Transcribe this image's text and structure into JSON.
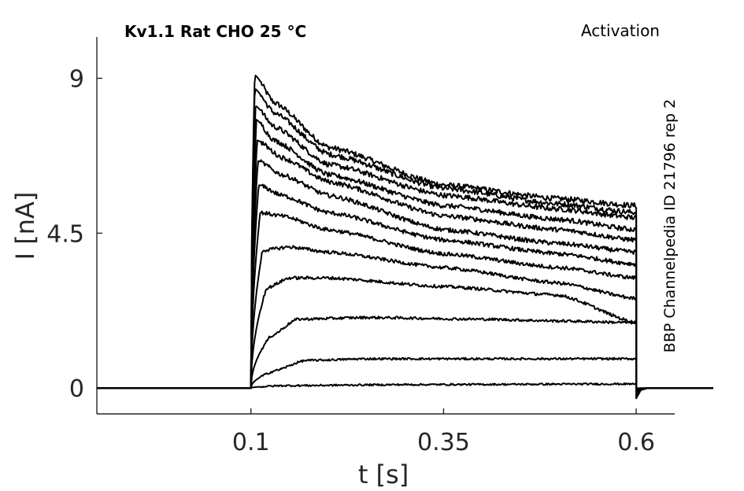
{
  "chart_data": {
    "type": "line",
    "title": "Kv1.1  Rat  CHO  25 °C",
    "protocol": "Activation",
    "source": "BBP Channelpedia ID 21796 rep 2",
    "xlabel": "t [s]",
    "ylabel": "I [nA]",
    "xlim": [
      -0.1,
      0.65
    ],
    "ylim": [
      -0.75,
      10.2
    ],
    "xticks": [
      0.1,
      0.35,
      0.6
    ],
    "xtick_labels": [
      "0.1",
      "0.35",
      "0.6"
    ],
    "yticks": [
      0,
      4.5,
      9
    ],
    "ytick_labels": [
      "0",
      "4.5",
      "9"
    ],
    "grid": false,
    "x_range_of_traces": [
      -0.1,
      0.7
    ],
    "step_on": 0.1,
    "step_off": 0.6,
    "series_end_values": [
      5.3,
      5.1,
      4.95,
      4.6,
      4.3,
      3.95,
      3.6,
      3.2,
      2.6,
      1.9,
      0.85,
      0.12,
      0.0
    ],
    "series": [
      {
        "values": [
          [
            0.1,
            0
          ],
          [
            0.105,
            9.1
          ],
          [
            0.13,
            8.3
          ],
          [
            0.2,
            7.0
          ],
          [
            0.35,
            5.9
          ],
          [
            0.5,
            5.5
          ],
          [
            0.6,
            5.3
          ]
        ]
      },
      {
        "values": [
          [
            0.1,
            0
          ],
          [
            0.105,
            8.7
          ],
          [
            0.13,
            8.0
          ],
          [
            0.2,
            6.8
          ],
          [
            0.35,
            5.8
          ],
          [
            0.5,
            5.35
          ],
          [
            0.6,
            5.1
          ]
        ]
      },
      {
        "values": [
          [
            0.1,
            0
          ],
          [
            0.106,
            8.2
          ],
          [
            0.13,
            7.6
          ],
          [
            0.2,
            6.5
          ],
          [
            0.35,
            5.6
          ],
          [
            0.5,
            5.2
          ],
          [
            0.6,
            4.95
          ]
        ]
      },
      {
        "values": [
          [
            0.1,
            0
          ],
          [
            0.107,
            7.8
          ],
          [
            0.13,
            7.2
          ],
          [
            0.2,
            6.2
          ],
          [
            0.35,
            5.3
          ],
          [
            0.5,
            4.9
          ],
          [
            0.6,
            4.6
          ]
        ]
      },
      {
        "values": [
          [
            0.1,
            0
          ],
          [
            0.108,
            7.2
          ],
          [
            0.14,
            6.7
          ],
          [
            0.2,
            6.0
          ],
          [
            0.35,
            5.0
          ],
          [
            0.5,
            4.6
          ],
          [
            0.6,
            4.3
          ]
        ]
      },
      {
        "values": [
          [
            0.1,
            0
          ],
          [
            0.109,
            6.6
          ],
          [
            0.14,
            6.2
          ],
          [
            0.2,
            5.6
          ],
          [
            0.35,
            4.6
          ],
          [
            0.5,
            4.2
          ],
          [
            0.6,
            3.95
          ]
        ]
      },
      {
        "values": [
          [
            0.1,
            0
          ],
          [
            0.11,
            5.9
          ],
          [
            0.14,
            5.6
          ],
          [
            0.2,
            5.1
          ],
          [
            0.35,
            4.3
          ],
          [
            0.5,
            3.9
          ],
          [
            0.6,
            3.6
          ]
        ]
      },
      {
        "values": [
          [
            0.1,
            0
          ],
          [
            0.112,
            5.1
          ],
          [
            0.14,
            5.0
          ],
          [
            0.2,
            4.6
          ],
          [
            0.35,
            3.9
          ],
          [
            0.5,
            3.5
          ],
          [
            0.6,
            3.2
          ]
        ]
      },
      {
        "values": [
          [
            0.1,
            0
          ],
          [
            0.115,
            4.0
          ],
          [
            0.15,
            4.1
          ],
          [
            0.2,
            3.95
          ],
          [
            0.35,
            3.5
          ],
          [
            0.5,
            3.05
          ],
          [
            0.6,
            2.6
          ]
        ]
      },
      {
        "values": [
          [
            0.1,
            0
          ],
          [
            0.12,
            2.9
          ],
          [
            0.15,
            3.2
          ],
          [
            0.2,
            3.2
          ],
          [
            0.35,
            2.95
          ],
          [
            0.5,
            2.7
          ],
          [
            0.6,
            1.9
          ]
        ]
      },
      {
        "values": [
          [
            0.1,
            0
          ],
          [
            0.125,
            1.5
          ],
          [
            0.16,
            2.0
          ],
          [
            0.25,
            2.05
          ],
          [
            0.4,
            2.0
          ],
          [
            0.5,
            1.95
          ],
          [
            0.6,
            1.9
          ]
        ]
      },
      {
        "values": [
          [
            0.1,
            0
          ],
          [
            0.13,
            0.5
          ],
          [
            0.17,
            0.8
          ],
          [
            0.25,
            0.85
          ],
          [
            0.4,
            0.85
          ],
          [
            0.6,
            0.85
          ]
        ]
      },
      {
        "values": [
          [
            0.1,
            0
          ],
          [
            0.14,
            0.07
          ],
          [
            0.3,
            0.1
          ],
          [
            0.6,
            0.12
          ]
        ]
      }
    ]
  }
}
